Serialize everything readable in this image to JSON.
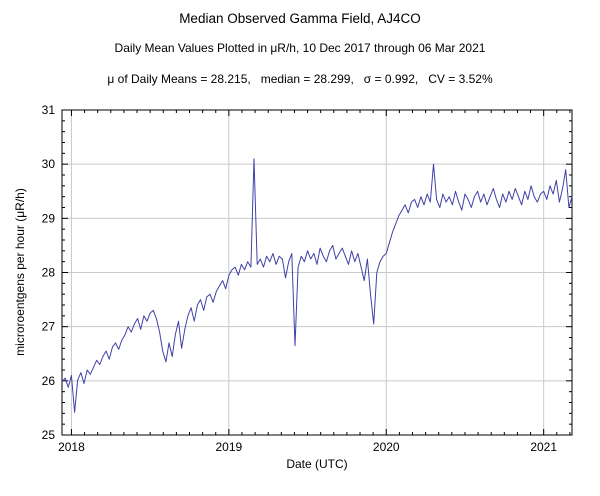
{
  "chart_data": {
    "type": "line",
    "title": "Median Observed Gamma Field, AJ4CO",
    "subtitle": "Daily Mean Values Plotted in μR/h, 10 Dec 2017 through 06 Mar 2021",
    "stats_line": "μ of Daily Means = 28.215,   median = 28.299,   σ = 0.992,   CV = 3.52%",
    "stats": {
      "mu_of_daily_means": 28.215,
      "median": 28.299,
      "sigma": 0.992,
      "cv_percent": 3.52
    },
    "xlabel": "Date (UTC)",
    "ylabel": "microroentgens per hour (μR/h)",
    "xlim": [
      2017.94,
      2021.18
    ],
    "ylim": [
      25,
      31
    ],
    "x_major_ticks": [
      2018,
      2019,
      2020,
      2021
    ],
    "y_major_ticks": [
      25,
      26,
      27,
      28,
      29,
      30,
      31
    ],
    "x_minor_per_year": 12,
    "y_minor_step": 0.2,
    "grid": true,
    "grid_color": "#c9c9c9",
    "frame_color": "#000000",
    "line_color": "#4141a8",
    "series": [
      {
        "name": "daily-mean-gamma-field",
        "x_start": 2017.94,
        "x_step": 0.02,
        "y": [
          25.98,
          26.05,
          25.88,
          26.1,
          25.42,
          26.02,
          26.15,
          25.95,
          26.2,
          26.12,
          26.25,
          26.38,
          26.3,
          26.45,
          26.55,
          26.4,
          26.62,
          26.7,
          26.58,
          26.75,
          26.85,
          27.0,
          26.9,
          27.05,
          27.15,
          26.95,
          27.2,
          27.1,
          27.25,
          27.3,
          27.15,
          26.9,
          26.55,
          26.35,
          26.7,
          26.45,
          26.85,
          27.1,
          26.6,
          26.95,
          27.2,
          27.35,
          27.1,
          27.4,
          27.5,
          27.3,
          27.55,
          27.6,
          27.45,
          27.65,
          27.75,
          27.85,
          27.7,
          27.95,
          28.05,
          28.1,
          27.95,
          28.15,
          28.05,
          28.2,
          28.1,
          30.1,
          28.15,
          28.25,
          28.1,
          28.3,
          28.2,
          28.35,
          28.15,
          28.3,
          28.25,
          27.9,
          28.2,
          28.35,
          26.65,
          28.1,
          28.3,
          28.2,
          28.4,
          28.25,
          28.35,
          28.15,
          28.45,
          28.3,
          28.2,
          28.4,
          28.5,
          28.25,
          28.35,
          28.45,
          28.3,
          28.15,
          28.4,
          28.2,
          28.35,
          28.1,
          27.85,
          28.25,
          27.6,
          27.05,
          28.0,
          28.2,
          28.3,
          28.35,
          28.55,
          28.75,
          28.9,
          29.05,
          29.15,
          29.25,
          29.1,
          29.3,
          29.35,
          29.2,
          29.4,
          29.25,
          29.45,
          29.3,
          30.0,
          29.35,
          29.2,
          29.45,
          29.3,
          29.4,
          29.25,
          29.5,
          29.3,
          29.15,
          29.45,
          29.35,
          29.2,
          29.4,
          29.5,
          29.3,
          29.45,
          29.25,
          29.4,
          29.55,
          29.35,
          29.2,
          29.45,
          29.3,
          29.5,
          29.35,
          29.55,
          29.4,
          29.25,
          29.5,
          29.35,
          29.6,
          29.4,
          29.3,
          29.45,
          29.5,
          29.35,
          29.6,
          29.45,
          29.7,
          29.3,
          29.55,
          29.9,
          29.2,
          29.4
        ]
      }
    ]
  }
}
